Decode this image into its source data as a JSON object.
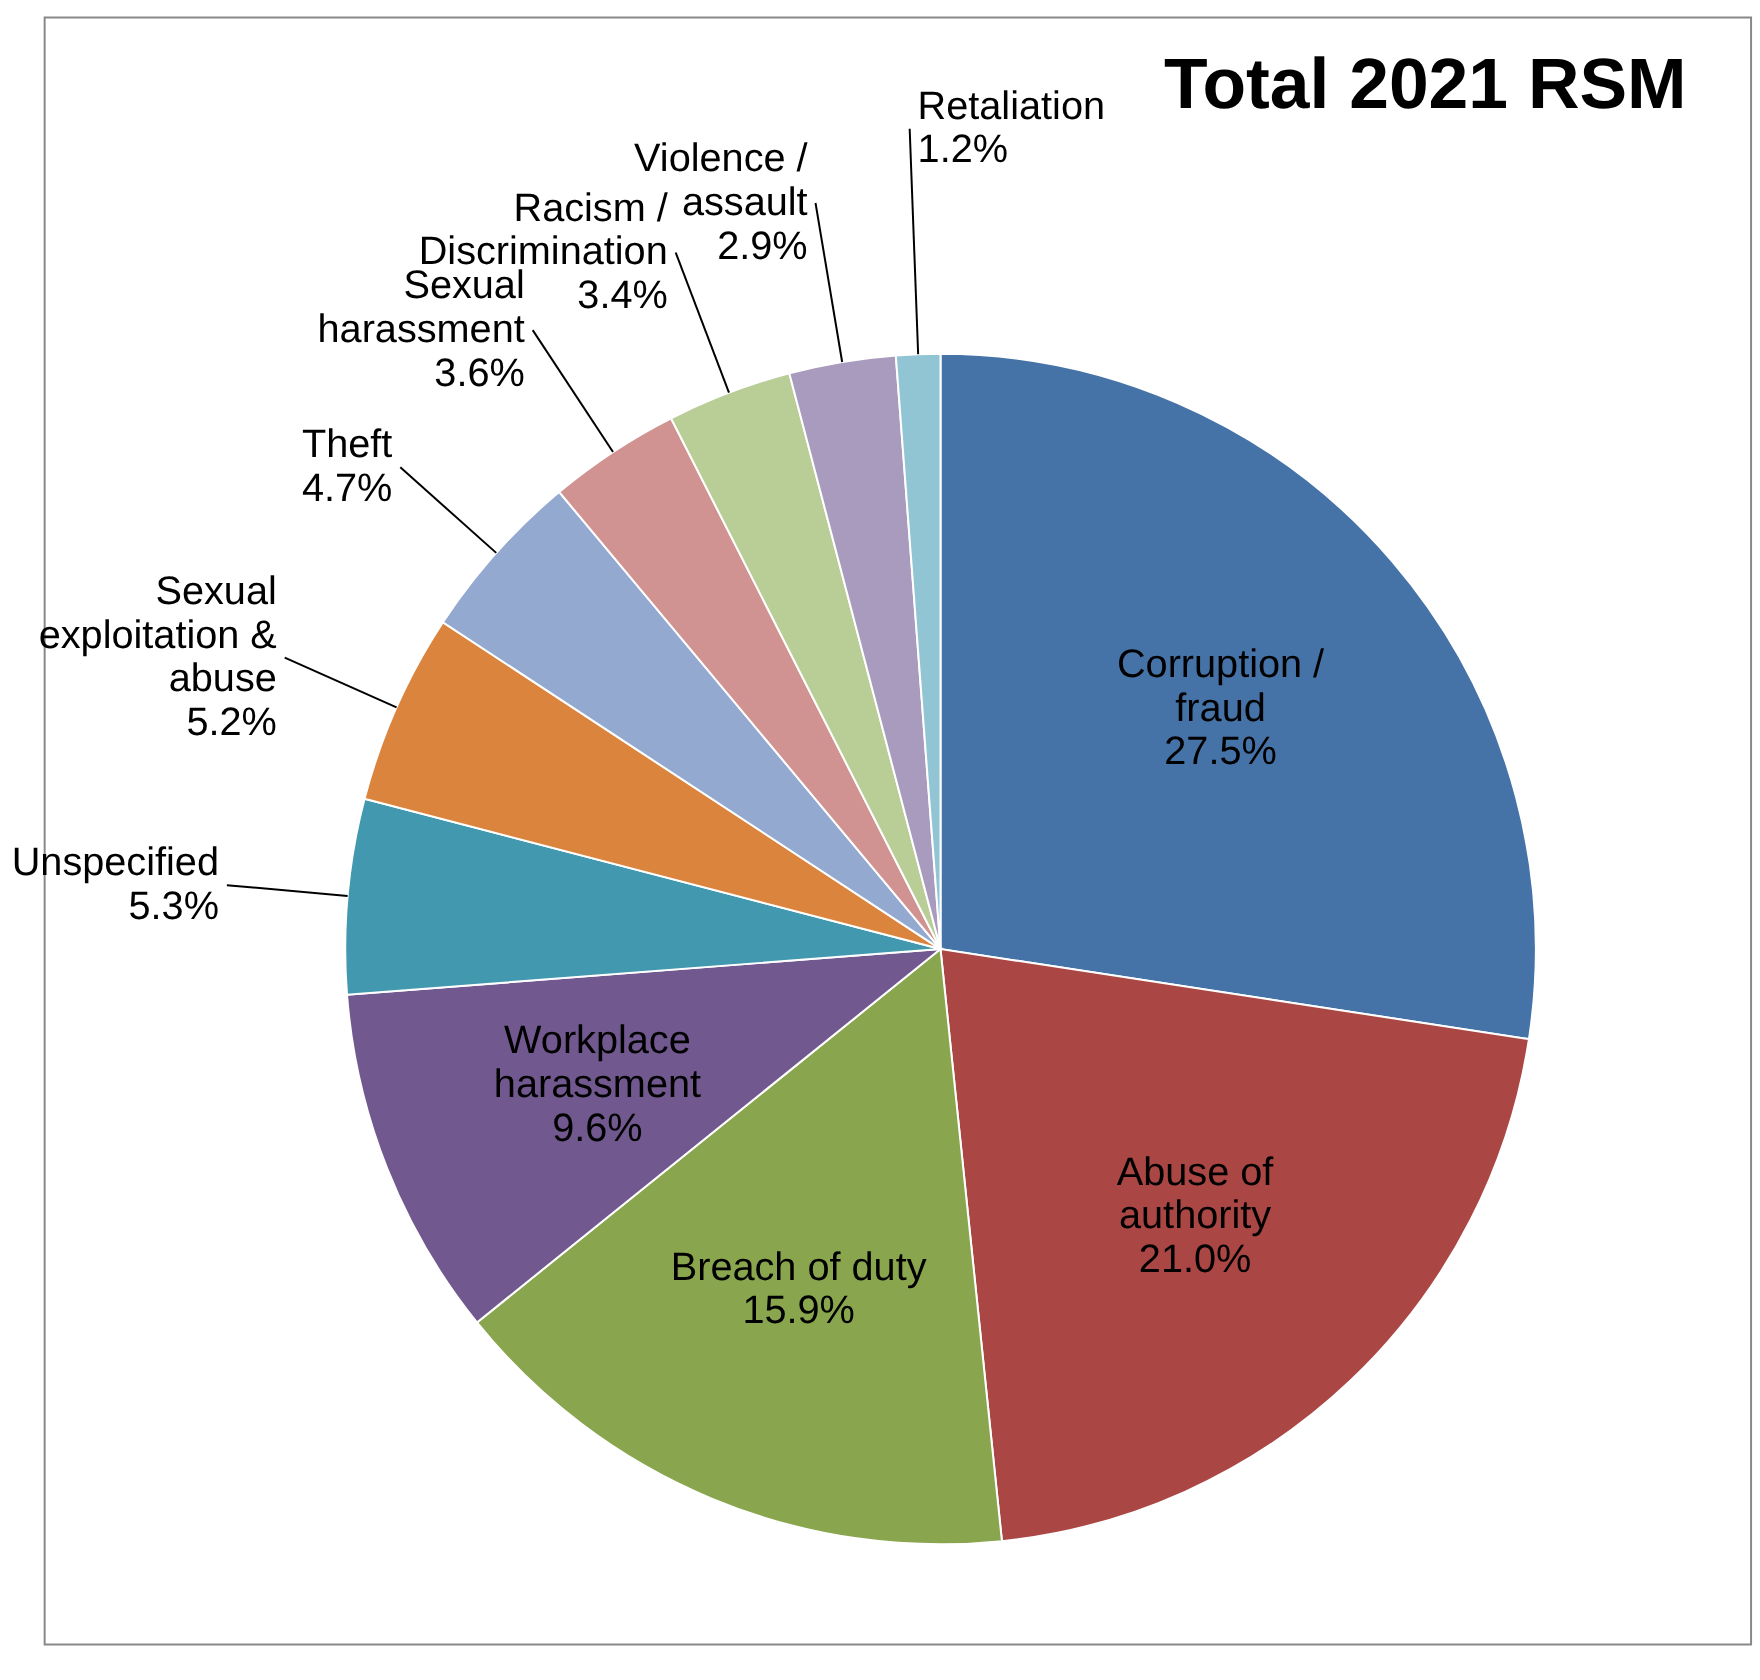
{
  "chart_data": {
    "type": "pie",
    "title": "Total 2021 RSM",
    "categories": [
      "Corruption / fraud",
      "Abuse of authority",
      "Breach of duty",
      "Workplace harassment",
      "Unspecified",
      "Sexual exploitation & abuse",
      "Theft",
      "Sexual harassment",
      "Racism / Discrimination",
      "Violence / assault",
      "Retaliation"
    ],
    "values": [
      27.5,
      21.0,
      15.9,
      9.6,
      5.3,
      5.2,
      4.7,
      3.6,
      3.4,
      2.9,
      1.2
    ],
    "value_labels": [
      "27.5%",
      "21.0%",
      "15.9%",
      "9.6%",
      "5.3%",
      "5.2%",
      "4.7%",
      "3.6%",
      "3.4%",
      "2.9%",
      "1.2%"
    ],
    "colors": [
      "#4572a7",
      "#aa4643",
      "#89a54e",
      "#71588f",
      "#4198af",
      "#db843d",
      "#93a9cf",
      "#d19392",
      "#b9cd96",
      "#a99bbd",
      "#92c5d4"
    ],
    "legend": false
  }
}
